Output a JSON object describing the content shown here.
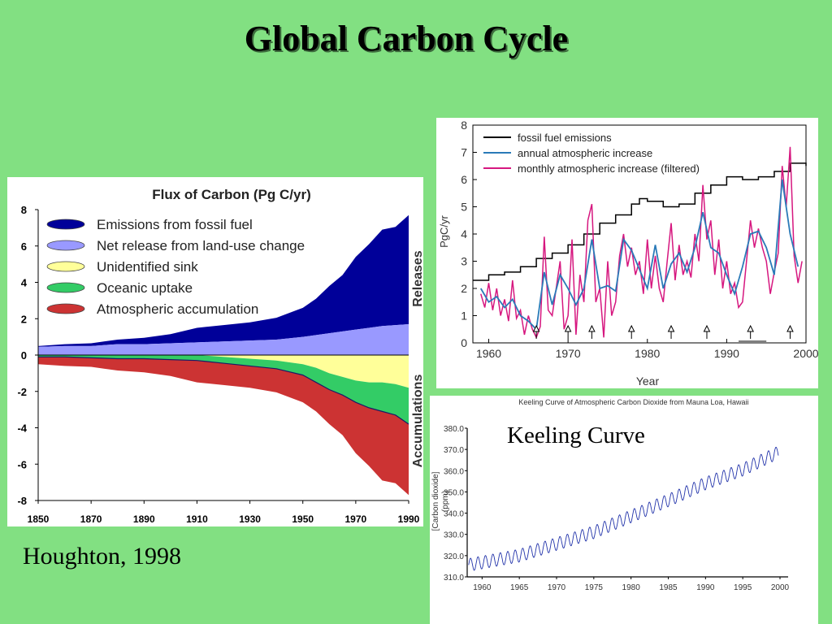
{
  "slide": {
    "title": "Global Carbon Cycle",
    "citation": "Houghton, 1998",
    "keeling_label": "Keeling Curve"
  },
  "colors": {
    "background": "#82e082",
    "fossil_fuel": "#000099",
    "land_use": "#9999ff",
    "unidentified_sink": "#ffff99",
    "oceanic_uptake": "#33cc66",
    "atmospheric_accumulation": "#cc3333",
    "line_black": "#000000",
    "line_blue": "#2a7ab8",
    "line_magenta": "#d6177f",
    "keeling_line": "#2233aa"
  },
  "chart_data": [
    {
      "id": "flux",
      "type": "area",
      "title": "Flux of Carbon (Pg C/yr)",
      "x": [
        1850,
        1860,
        1870,
        1880,
        1890,
        1900,
        1910,
        1920,
        1930,
        1940,
        1950,
        1955,
        1960,
        1965,
        1970,
        1975,
        1980,
        1985,
        1990
      ],
      "xticks": [
        1850,
        1870,
        1890,
        1910,
        1930,
        1950,
        1970,
        1990
      ],
      "yticks": [
        8,
        6,
        4,
        2,
        0,
        -2,
        -4,
        -6,
        -8
      ],
      "ylim": [
        -8,
        8
      ],
      "xlim": [
        1850,
        1990
      ],
      "right_labels": [
        "Releases",
        "Accumulations"
      ],
      "series": [
        {
          "name": "Emissions from fossil fuel",
          "values": [
            0.05,
            0.1,
            0.15,
            0.25,
            0.35,
            0.5,
            0.8,
            0.9,
            1.0,
            1.2,
            1.6,
            2.0,
            2.6,
            3.1,
            4.0,
            4.6,
            5.3,
            5.4,
            6.0
          ]
        },
        {
          "name": "Net release from land-use change",
          "values": [
            0.45,
            0.5,
            0.5,
            0.6,
            0.6,
            0.65,
            0.7,
            0.75,
            0.8,
            0.85,
            1.0,
            1.1,
            1.2,
            1.3,
            1.4,
            1.5,
            1.6,
            1.65,
            1.7
          ]
        },
        {
          "name": "Unidentified sink",
          "values": [
            0,
            0,
            0,
            0,
            0,
            0,
            0,
            -0.1,
            -0.2,
            -0.3,
            -0.5,
            -0.7,
            -1.0,
            -1.2,
            -1.4,
            -1.5,
            -1.5,
            -1.6,
            -1.8
          ]
        },
        {
          "name": "Oceanic uptake",
          "values": [
            -0.1,
            -0.1,
            -0.15,
            -0.2,
            -0.2,
            -0.25,
            -0.3,
            -0.35,
            -0.4,
            -0.45,
            -0.6,
            -0.8,
            -0.9,
            -1.0,
            -1.2,
            -1.4,
            -1.6,
            -1.7,
            -2.0
          ]
        },
        {
          "name": "Atmospheric accumulation",
          "values": [
            -0.4,
            -0.5,
            -0.5,
            -0.65,
            -0.75,
            -0.9,
            -1.2,
            -1.2,
            -1.2,
            -1.3,
            -1.5,
            -1.6,
            -1.9,
            -2.2,
            -2.8,
            -3.2,
            -3.8,
            -3.75,
            -3.9
          ]
        }
      ]
    },
    {
      "id": "growth",
      "type": "line",
      "xlabel": "Year",
      "ylabel": "PgC/yr",
      "xlim": [
        1958,
        2000
      ],
      "ylim": [
        0,
        8
      ],
      "xticks": [
        1960,
        1970,
        1980,
        1990,
        2000
      ],
      "yticks": [
        0,
        1,
        2,
        3,
        4,
        5,
        6,
        7,
        8
      ],
      "series": [
        {
          "name": "fossil fuel emissions",
          "x": [
            1958,
            1960,
            1962,
            1964,
            1966,
            1968,
            1970,
            1972,
            1974,
            1976,
            1978,
            1979,
            1980,
            1982,
            1984,
            1986,
            1988,
            1990,
            1992,
            1994,
            1996,
            1998,
            2000
          ],
          "values": [
            2.3,
            2.5,
            2.6,
            2.8,
            3.1,
            3.3,
            3.6,
            4.0,
            4.4,
            4.7,
            5.1,
            5.3,
            5.2,
            5.0,
            5.1,
            5.5,
            5.8,
            6.1,
            6.0,
            6.1,
            6.3,
            6.6,
            6.5
          ]
        },
        {
          "name": "annual atmospheric increase",
          "x": [
            1959,
            1960,
            1961,
            1962,
            1963,
            1964,
            1965,
            1966,
            1967,
            1968,
            1969,
            1970,
            1971,
            1972,
            1973,
            1974,
            1975,
            1976,
            1977,
            1978,
            1979,
            1980,
            1981,
            1982,
            1983,
            1984,
            1985,
            1986,
            1987,
            1988,
            1989,
            1990,
            1991,
            1992,
            1993,
            1994,
            1995,
            1996,
            1997,
            1998,
            1999
          ],
          "values": [
            2.0,
            1.5,
            1.7,
            1.3,
            1.6,
            1.0,
            0.8,
            0.5,
            2.6,
            1.4,
            2.5,
            2.0,
            1.4,
            2.0,
            3.8,
            2.0,
            2.1,
            1.9,
            3.8,
            3.4,
            2.7,
            2.0,
            3.6,
            2.0,
            2.9,
            3.3,
            2.6,
            3.5,
            4.8,
            3.5,
            3.3,
            2.5,
            1.8,
            2.8,
            4.0,
            4.1,
            3.5,
            2.5,
            6.0,
            4.0,
            2.8
          ]
        },
        {
          "name": "monthly atmospheric increase (filtered)",
          "x": [
            1959,
            1959.5,
            1960,
            1960.5,
            1961,
            1961.5,
            1962,
            1962.5,
            1963,
            1963.5,
            1964,
            1964.5,
            1965,
            1965.5,
            1966,
            1966.5,
            1967,
            1967.5,
            1968,
            1968.5,
            1969,
            1969.5,
            1970,
            1970.5,
            1971,
            1971.5,
            1972,
            1972.5,
            1973,
            1973.5,
            1974,
            1974.5,
            1975,
            1975.5,
            1976,
            1976.5,
            1977,
            1977.5,
            1978,
            1978.5,
            1979,
            1979.5,
            1980,
            1980.5,
            1981,
            1981.5,
            1982,
            1982.5,
            1983,
            1983.5,
            1984,
            1984.5,
            1985,
            1985.5,
            1986,
            1986.5,
            1987,
            1987.5,
            1988,
            1988.5,
            1989,
            1989.5,
            1990,
            1990.5,
            1991,
            1991.5,
            1992,
            1992.5,
            1993,
            1993.5,
            1994,
            1994.5,
            1995,
            1995.5,
            1996,
            1996.5,
            1997,
            1997.5,
            1998,
            1998.5,
            1999,
            1999.5
          ],
          "values": [
            1.8,
            1.3,
            2.2,
            1.2,
            2.0,
            1.0,
            1.6,
            0.8,
            2.3,
            0.9,
            1.2,
            0.3,
            1.0,
            0.5,
            0.2,
            0.6,
            3.9,
            1.2,
            1.0,
            2.0,
            3.0,
            0.5,
            1.0,
            3.8,
            0.3,
            2.5,
            1.5,
            4.5,
            5.1,
            1.5,
            2.0,
            0.2,
            3.0,
            1.0,
            1.5,
            3.2,
            4.0,
            2.8,
            3.5,
            2.5,
            3.0,
            1.8,
            3.8,
            2.0,
            3.2,
            2.0,
            1.5,
            3.0,
            4.4,
            2.3,
            3.6,
            2.5,
            3.0,
            2.4,
            4.0,
            3.0,
            5.8,
            3.8,
            4.5,
            2.5,
            3.8,
            2.0,
            3.0,
            1.8,
            2.2,
            1.3,
            1.5,
            3.0,
            4.5,
            3.5,
            4.2,
            3.5,
            3.0,
            1.8,
            2.6,
            3.3,
            6.5,
            5.0,
            7.2,
            3.2,
            2.2,
            3.0
          ]
        }
      ],
      "arrow_years": [
        1966,
        1970,
        1973,
        1978,
        1983,
        1987.5,
        1993,
        1998
      ]
    },
    {
      "id": "keeling",
      "type": "line",
      "title": "Keeling Curve of Atmospheric Carbon Dioxide from Mauna Loa, Hawaii",
      "ylabel": "[Carbon dioxide] (ppm)",
      "xlim": [
        1958,
        2000
      ],
      "ylim": [
        310,
        380
      ],
      "xticks": [
        1960,
        1965,
        1970,
        1975,
        1980,
        1985,
        1990,
        1995,
        2000
      ],
      "yticks": [
        "380.0",
        "370.0",
        "360.0",
        "350.0",
        "340.0",
        "330.0",
        "320.0",
        "310.0"
      ],
      "trend": {
        "x": [
          1958,
          1965,
          1970,
          1975,
          1980,
          1985,
          1990,
          1995,
          2000
        ],
        "values": [
          315.5,
          320.0,
          325.5,
          331.0,
          338.5,
          346.0,
          354.0,
          360.5,
          369.0
        ]
      },
      "seasonal_amplitude": 3.0
    }
  ]
}
